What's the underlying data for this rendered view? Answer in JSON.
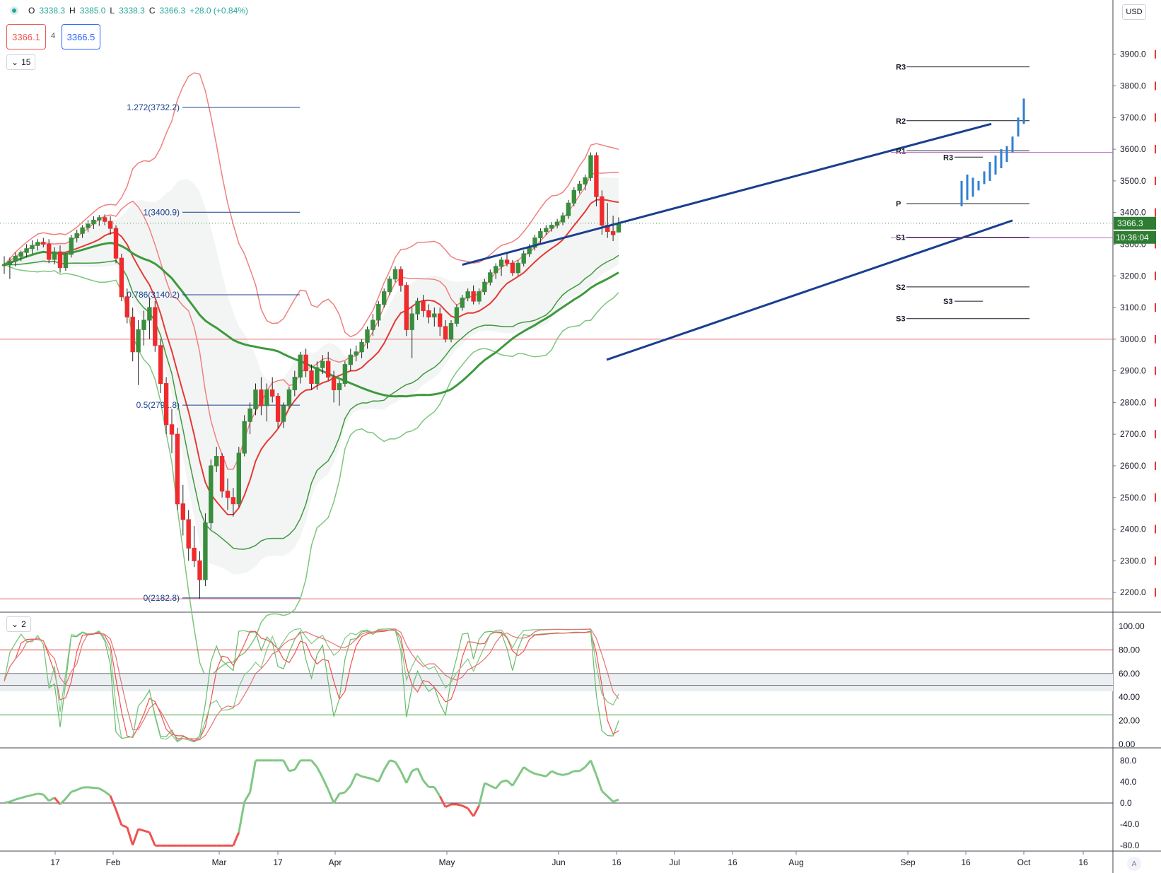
{
  "header": {
    "open_label": "O",
    "open": "3338.3",
    "high_label": "H",
    "high": "3385.0",
    "low_label": "L",
    "low": "3338.3",
    "close_label": "C",
    "close": "3366.3",
    "change": "+28.0 (+0.84%)"
  },
  "trade": {
    "sell": "3366.1",
    "spread": "4",
    "buy": "3366.5"
  },
  "main_pane": {
    "indicator_count": "15"
  },
  "osc_pane": {
    "indicator_count": "2"
  },
  "currency": "USD",
  "auto_label": "A",
  "colors": {
    "up": "#388e3c",
    "down": "#ef2b2d",
    "ma_long": "#3e9a3e",
    "band_upper": "#f08080",
    "band_green": "#7dc67d",
    "trend": "#1a3f8f",
    "projection": "#2f7fd1"
  },
  "chart_data": {
    "type": "candlestick",
    "symbol_price": "3366.3",
    "countdown": "10:36:04",
    "y_axis": {
      "ticks": [
        "2200.0",
        "2300.0",
        "2400.0",
        "2500.0",
        "2600.0",
        "2700.0",
        "2800.0",
        "2900.0",
        "3000.0",
        "3100.0",
        "3200.0",
        "3300.0",
        "3400.0",
        "3500.0",
        "3600.0",
        "3700.0",
        "3800.0",
        "3900.0"
      ],
      "range": [
        2140,
        4020
      ]
    },
    "x_axis": {
      "ticks": [
        "17",
        "Feb",
        "Mar",
        "17",
        "Apr",
        "May",
        "Jun",
        "16",
        "Jul",
        "16",
        "Aug",
        "Sep",
        "16",
        "Oct",
        "16"
      ]
    },
    "fibonacci": [
      {
        "label": "1.272(3732.2)",
        "value": 3732.2
      },
      {
        "label": "1(3400.9)",
        "value": 3400.9
      },
      {
        "label": "0.786(3140.2)",
        "value": 3140.2
      },
      {
        "label": "0.5(2791.8)",
        "value": 2791.8
      },
      {
        "label": "0(2182.8)",
        "value": 2182.8
      }
    ],
    "pivots_monthly": [
      {
        "label": "R3",
        "value": 3860
      },
      {
        "label": "R2",
        "value": 3690
      },
      {
        "label": "R1",
        "value": 3595
      },
      {
        "label": "P",
        "value": 3428
      },
      {
        "label": "S1",
        "value": 3322
      },
      {
        "label": "S2",
        "value": 3165
      },
      {
        "label": "S3",
        "value": 3065
      }
    ],
    "pivots_weekly": [
      {
        "label": "R3",
        "value": 3575
      },
      {
        "label": "S3",
        "value": 3120
      }
    ],
    "horizontal_lines": [
      3000,
      2180
    ],
    "candles": [
      [
        3232,
        3262,
        3206,
        3236
      ],
      [
        3236,
        3258,
        3190,
        3246
      ],
      [
        3246,
        3274,
        3230,
        3262
      ],
      [
        3262,
        3280,
        3246,
        3274
      ],
      [
        3274,
        3300,
        3258,
        3286
      ],
      [
        3286,
        3312,
        3270,
        3296
      ],
      [
        3296,
        3316,
        3280,
        3306
      ],
      [
        3306,
        3320,
        3290,
        3300
      ],
      [
        3300,
        3316,
        3240,
        3252
      ],
      [
        3252,
        3290,
        3236,
        3276
      ],
      [
        3276,
        3296,
        3210,
        3226
      ],
      [
        3226,
        3272,
        3216,
        3268
      ],
      [
        3268,
        3330,
        3258,
        3320
      ],
      [
        3320,
        3346,
        3306,
        3334
      ],
      [
        3334,
        3360,
        3320,
        3352
      ],
      [
        3352,
        3376,
        3338,
        3364
      ],
      [
        3364,
        3388,
        3348,
        3376
      ],
      [
        3376,
        3392,
        3358,
        3384
      ],
      [
        3384,
        3394,
        3360,
        3372
      ],
      [
        3372,
        3388,
        3330,
        3350
      ],
      [
        3350,
        3360,
        3240,
        3256
      ],
      [
        3256,
        3270,
        3120,
        3134
      ],
      [
        3134,
        3160,
        3050,
        3070
      ],
      [
        3070,
        3100,
        2930,
        2960
      ],
      [
        2960,
        3060,
        2855,
        3030
      ],
      [
        3030,
        3090,
        2980,
        3060
      ],
      [
        3060,
        3130,
        3000,
        3100
      ],
      [
        3100,
        3120,
        2960,
        2980
      ],
      [
        2980,
        3000,
        2830,
        2860
      ],
      [
        2860,
        2880,
        2700,
        2730
      ],
      [
        2730,
        2780,
        2640,
        2700
      ],
      [
        2700,
        2720,
        2460,
        2480
      ],
      [
        2480,
        2540,
        2380,
        2430
      ],
      [
        2430,
        2460,
        2300,
        2340
      ],
      [
        2340,
        2410,
        2280,
        2300
      ],
      [
        2300,
        2330,
        2180,
        2240
      ],
      [
        2240,
        2450,
        2220,
        2420
      ],
      [
        2420,
        2620,
        2400,
        2600
      ],
      [
        2600,
        2660,
        2580,
        2630
      ],
      [
        2630,
        2640,
        2500,
        2520
      ],
      [
        2520,
        2560,
        2460,
        2500
      ],
      [
        2500,
        2530,
        2440,
        2480
      ],
      [
        2480,
        2660,
        2470,
        2640
      ],
      [
        2640,
        2760,
        2630,
        2740
      ],
      [
        2740,
        2800,
        2700,
        2780
      ],
      [
        2780,
        2860,
        2760,
        2840
      ],
      [
        2840,
        2880,
        2760,
        2790
      ],
      [
        2790,
        2860,
        2740,
        2840
      ],
      [
        2840,
        2880,
        2800,
        2820
      ],
      [
        2820,
        2830,
        2720,
        2740
      ],
      [
        2740,
        2800,
        2720,
        2790
      ],
      [
        2790,
        2850,
        2780,
        2840
      ],
      [
        2840,
        2900,
        2820,
        2880
      ],
      [
        2880,
        2960,
        2860,
        2950
      ],
      [
        2950,
        2970,
        2880,
        2900
      ],
      [
        2900,
        2920,
        2840,
        2860
      ],
      [
        2860,
        2930,
        2840,
        2910
      ],
      [
        2910,
        2950,
        2890,
        2930
      ],
      [
        2930,
        2960,
        2870,
        2880
      ],
      [
        2880,
        2900,
        2800,
        2840
      ],
      [
        2840,
        2870,
        2790,
        2860
      ],
      [
        2860,
        2930,
        2850,
        2920
      ],
      [
        2920,
        2970,
        2900,
        2950
      ],
      [
        2950,
        2980,
        2930,
        2960
      ],
      [
        2960,
        3000,
        2940,
        2990
      ],
      [
        2990,
        3040,
        2970,
        3030
      ],
      [
        3030,
        3080,
        3010,
        3060
      ],
      [
        3060,
        3120,
        3040,
        3110
      ],
      [
        3110,
        3160,
        3100,
        3150
      ],
      [
        3150,
        3200,
        3140,
        3190
      ],
      [
        3190,
        3230,
        3180,
        3220
      ],
      [
        3220,
        3230,
        3150,
        3170
      ],
      [
        3170,
        3180,
        3010,
        3030
      ],
      [
        3030,
        3100,
        2940,
        3080
      ],
      [
        3080,
        3130,
        3060,
        3120
      ],
      [
        3120,
        3140,
        3070,
        3090
      ],
      [
        3090,
        3110,
        3050,
        3070
      ],
      [
        3070,
        3100,
        3040,
        3080
      ],
      [
        3080,
        3100,
        3010,
        3040
      ],
      [
        3040,
        3060,
        2990,
        3000
      ],
      [
        3000,
        3060,
        2990,
        3050
      ],
      [
        3050,
        3110,
        3040,
        3100
      ],
      [
        3100,
        3140,
        3090,
        3130
      ],
      [
        3130,
        3160,
        3120,
        3150
      ],
      [
        3150,
        3170,
        3110,
        3120
      ],
      [
        3120,
        3160,
        3110,
        3150
      ],
      [
        3150,
        3190,
        3140,
        3180
      ],
      [
        3180,
        3220,
        3170,
        3210
      ],
      [
        3210,
        3240,
        3190,
        3230
      ],
      [
        3230,
        3260,
        3200,
        3250
      ],
      [
        3250,
        3270,
        3230,
        3240
      ],
      [
        3240,
        3250,
        3200,
        3210
      ],
      [
        3210,
        3250,
        3200,
        3240
      ],
      [
        3240,
        3280,
        3230,
        3270
      ],
      [
        3270,
        3300,
        3260,
        3290
      ],
      [
        3290,
        3330,
        3280,
        3320
      ],
      [
        3320,
        3350,
        3300,
        3340
      ],
      [
        3340,
        3360,
        3330,
        3350
      ],
      [
        3350,
        3370,
        3340,
        3360
      ],
      [
        3360,
        3380,
        3350,
        3370
      ],
      [
        3370,
        3400,
        3360,
        3390
      ],
      [
        3390,
        3440,
        3380,
        3430
      ],
      [
        3430,
        3480,
        3420,
        3470
      ],
      [
        3470,
        3500,
        3460,
        3490
      ],
      [
        3490,
        3520,
        3470,
        3510
      ],
      [
        3510,
        3590,
        3500,
        3580
      ],
      [
        3580,
        3590,
        3420,
        3450
      ],
      [
        3450,
        3470,
        3330,
        3360
      ],
      [
        3360,
        3430,
        3320,
        3340
      ],
      [
        3340,
        3390,
        3310,
        3330
      ],
      [
        3338.3,
        3385,
        3338.3,
        3366.3
      ]
    ],
    "projection": [
      [
        3420,
        3500
      ],
      [
        3440,
        3520
      ],
      [
        3450,
        3510
      ],
      [
        3470,
        3500
      ],
      [
        3490,
        3530
      ],
      [
        3500,
        3560
      ],
      [
        3520,
        3580
      ],
      [
        3540,
        3600
      ],
      [
        3560,
        3610
      ],
      [
        3590,
        3640
      ],
      [
        3640,
        3700
      ],
      [
        3680,
        3760
      ]
    ],
    "oscillator": {
      "ticks": [
        "100.00",
        "80.00",
        "60.00",
        "40.00",
        "20.00",
        "0.00"
      ],
      "levels": [
        80,
        60,
        50,
        25
      ]
    },
    "momentum": {
      "ticks": [
        "80.0",
        "40.0",
        "0.0",
        "-40.0",
        "-80.0"
      ]
    }
  }
}
